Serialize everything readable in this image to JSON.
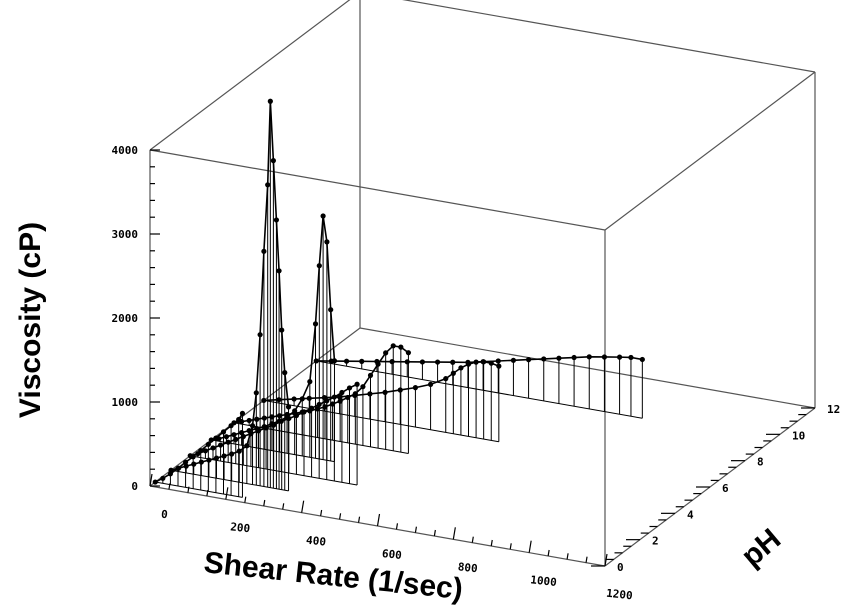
{
  "chart_data": {
    "type": "3d-line",
    "title": "",
    "xlabel": "Shear Rate (1/sec)",
    "ylabel": "Viscosity (cP)",
    "zlabel": "pH",
    "xlim": [
      0,
      1200
    ],
    "ylim": [
      0,
      4000
    ],
    "zlim": [
      0,
      12
    ],
    "x_ticks": [
      "0",
      "200",
      "400",
      "600",
      "800",
      "1000",
      "1200"
    ],
    "y_ticks": [
      "0",
      "1000",
      "2000",
      "3000",
      "4000"
    ],
    "z_ticks": [
      "0",
      "2",
      "4",
      "6",
      "8",
      "10",
      "12"
    ],
    "grid": false,
    "series": [
      {
        "z": 0.3,
        "points": [
          [
            0,
            0
          ],
          [
            20,
            60
          ],
          [
            40,
            130
          ],
          [
            60,
            210
          ],
          [
            80,
            300
          ],
          [
            100,
            380
          ],
          [
            120,
            470
          ],
          [
            140,
            560
          ],
          [
            160,
            650
          ],
          [
            180,
            740
          ],
          [
            200,
            830
          ],
          [
            220,
            920
          ],
          [
            230,
            1000
          ]
        ]
      },
      {
        "z": 1.2,
        "points": [
          [
            0,
            0
          ],
          [
            20,
            40
          ],
          [
            40,
            80
          ],
          [
            60,
            120
          ],
          [
            80,
            160
          ],
          [
            100,
            200
          ],
          [
            120,
            240
          ],
          [
            140,
            280
          ],
          [
            160,
            320
          ],
          [
            180,
            370
          ],
          [
            200,
            450
          ],
          [
            215,
            700
          ],
          [
            225,
            1100
          ],
          [
            235,
            1800
          ],
          [
            245,
            2800
          ],
          [
            255,
            3600
          ],
          [
            262,
            4600
          ],
          [
            270,
            3900
          ],
          [
            278,
            3200
          ],
          [
            285,
            2600
          ],
          [
            292,
            1900
          ],
          [
            300,
            1400
          ],
          [
            310,
            1000
          ]
        ]
      },
      {
        "z": 2.3,
        "points": [
          [
            0,
            0
          ],
          [
            20,
            40
          ],
          [
            40,
            90
          ],
          [
            60,
            140
          ],
          [
            80,
            190
          ],
          [
            100,
            240
          ],
          [
            120,
            290
          ],
          [
            140,
            340
          ],
          [
            160,
            390
          ],
          [
            180,
            440
          ],
          [
            200,
            490
          ],
          [
            220,
            540
          ],
          [
            240,
            600
          ],
          [
            260,
            650
          ],
          [
            280,
            700
          ],
          [
            300,
            760
          ],
          [
            320,
            820
          ],
          [
            340,
            880
          ],
          [
            360,
            940
          ],
          [
            380,
            1000
          ],
          [
            400,
            1070
          ],
          [
            420,
            1140
          ],
          [
            440,
            1200
          ]
        ]
      },
      {
        "z": 3.5,
        "points": [
          [
            0,
            0
          ],
          [
            20,
            30
          ],
          [
            40,
            70
          ],
          [
            60,
            110
          ],
          [
            80,
            150
          ],
          [
            100,
            190
          ],
          [
            120,
            230
          ],
          [
            140,
            270
          ],
          [
            160,
            320
          ],
          [
            180,
            370
          ],
          [
            200,
            430
          ],
          [
            220,
            520
          ],
          [
            240,
            680
          ],
          [
            260,
            900
          ],
          [
            275,
            1600
          ],
          [
            285,
            2300
          ],
          [
            295,
            2900
          ],
          [
            305,
            2600
          ],
          [
            315,
            1800
          ],
          [
            325,
            1200
          ]
        ]
      },
      {
        "z": 4.8,
        "points": [
          [
            0,
            0
          ],
          [
            20,
            30
          ],
          [
            40,
            60
          ],
          [
            60,
            90
          ],
          [
            80,
            120
          ],
          [
            100,
            150
          ],
          [
            120,
            180
          ],
          [
            140,
            210
          ],
          [
            160,
            240
          ],
          [
            180,
            270
          ],
          [
            200,
            300
          ],
          [
            220,
            340
          ],
          [
            240,
            380
          ],
          [
            260,
            430
          ],
          [
            280,
            480
          ],
          [
            300,
            540
          ],
          [
            320,
            600
          ],
          [
            340,
            700
          ],
          [
            360,
            850
          ],
          [
            380,
            1000
          ],
          [
            400,
            1150
          ],
          [
            420,
            1250
          ],
          [
            440,
            1250
          ],
          [
            460,
            1200
          ]
        ]
      },
      {
        "z": 6.5,
        "points": [
          [
            0,
            0
          ],
          [
            40,
            40
          ],
          [
            80,
            80
          ],
          [
            120,
            120
          ],
          [
            160,
            160
          ],
          [
            200,
            200
          ],
          [
            240,
            250
          ],
          [
            280,
            300
          ],
          [
            320,
            350
          ],
          [
            360,
            410
          ],
          [
            400,
            470
          ],
          [
            440,
            540
          ],
          [
            480,
            640
          ],
          [
            500,
            720
          ],
          [
            520,
            800
          ],
          [
            540,
            860
          ],
          [
            560,
            900
          ],
          [
            580,
            920
          ],
          [
            600,
            920
          ],
          [
            620,
            900
          ]
        ]
      },
      {
        "z": 9.5,
        "points": [
          [
            0,
            0
          ],
          [
            40,
            30
          ],
          [
            80,
            60
          ],
          [
            120,
            90
          ],
          [
            160,
            120
          ],
          [
            200,
            150
          ],
          [
            240,
            180
          ],
          [
            280,
            210
          ],
          [
            320,
            240
          ],
          [
            360,
            270
          ],
          [
            400,
            300
          ],
          [
            440,
            340
          ],
          [
            480,
            380
          ],
          [
            520,
            420
          ],
          [
            560,
            460
          ],
          [
            600,
            500
          ],
          [
            640,
            540
          ],
          [
            680,
            580
          ],
          [
            720,
            620
          ],
          [
            760,
            650
          ],
          [
            800,
            680
          ],
          [
            830,
            700
          ],
          [
            860,
            700
          ]
        ]
      }
    ]
  }
}
